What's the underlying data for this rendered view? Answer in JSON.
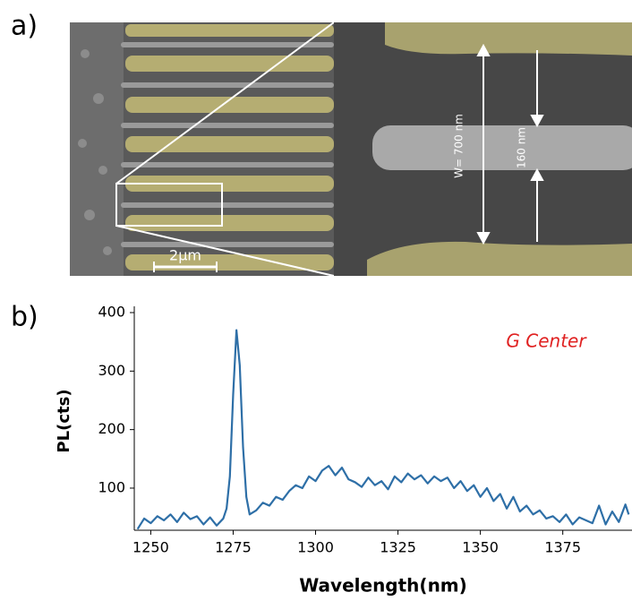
{
  "figure": {
    "panel_a_label": "a)",
    "panel_b_label": "b)",
    "scale_bar": "2µm",
    "width_label": "W= 700 nm",
    "gap_label": "160 nm"
  },
  "chart_data": {
    "type": "line",
    "annotation": "G Center",
    "xlabel": "Wavelength(nm)",
    "ylabel": "PL(cts)",
    "color": "#2e6fa7",
    "x": [
      1246,
      1248,
      1250,
      1252,
      1254,
      1256,
      1258,
      1260,
      1262,
      1264,
      1266,
      1268,
      1270,
      1272,
      1273,
      1274,
      1275,
      1276,
      1277,
      1278,
      1279,
      1280,
      1282,
      1284,
      1286,
      1288,
      1290,
      1292,
      1294,
      1296,
      1298,
      1300,
      1302,
      1304,
      1306,
      1308,
      1310,
      1312,
      1314,
      1316,
      1318,
      1320,
      1322,
      1324,
      1326,
      1328,
      1330,
      1332,
      1334,
      1336,
      1338,
      1340,
      1342,
      1344,
      1346,
      1348,
      1350,
      1352,
      1354,
      1356,
      1358,
      1360,
      1362,
      1364,
      1366,
      1368,
      1370,
      1372,
      1374,
      1376,
      1378,
      1380,
      1382,
      1384,
      1386,
      1388,
      1390,
      1392,
      1394,
      1395
    ],
    "values": [
      30,
      48,
      40,
      52,
      45,
      55,
      42,
      58,
      47,
      52,
      38,
      50,
      36,
      48,
      65,
      120,
      260,
      370,
      310,
      170,
      85,
      55,
      62,
      75,
      70,
      85,
      80,
      95,
      105,
      100,
      120,
      112,
      130,
      138,
      122,
      135,
      115,
      110,
      102,
      118,
      105,
      112,
      98,
      120,
      110,
      125,
      115,
      122,
      108,
      120,
      112,
      118,
      100,
      112,
      95,
      105,
      85,
      100,
      78,
      90,
      65,
      85,
      60,
      70,
      55,
      62,
      48,
      52,
      42,
      55,
      38,
      50,
      45,
      40,
      70,
      38,
      60,
      42,
      72,
      55
    ],
    "xlim": [
      1245,
      1396
    ],
    "xticks": [
      1250,
      1275,
      1300,
      1325,
      1350,
      1375
    ],
    "ylim": [
      28,
      400
    ],
    "yticks": [
      100,
      200,
      300,
      400
    ]
  }
}
